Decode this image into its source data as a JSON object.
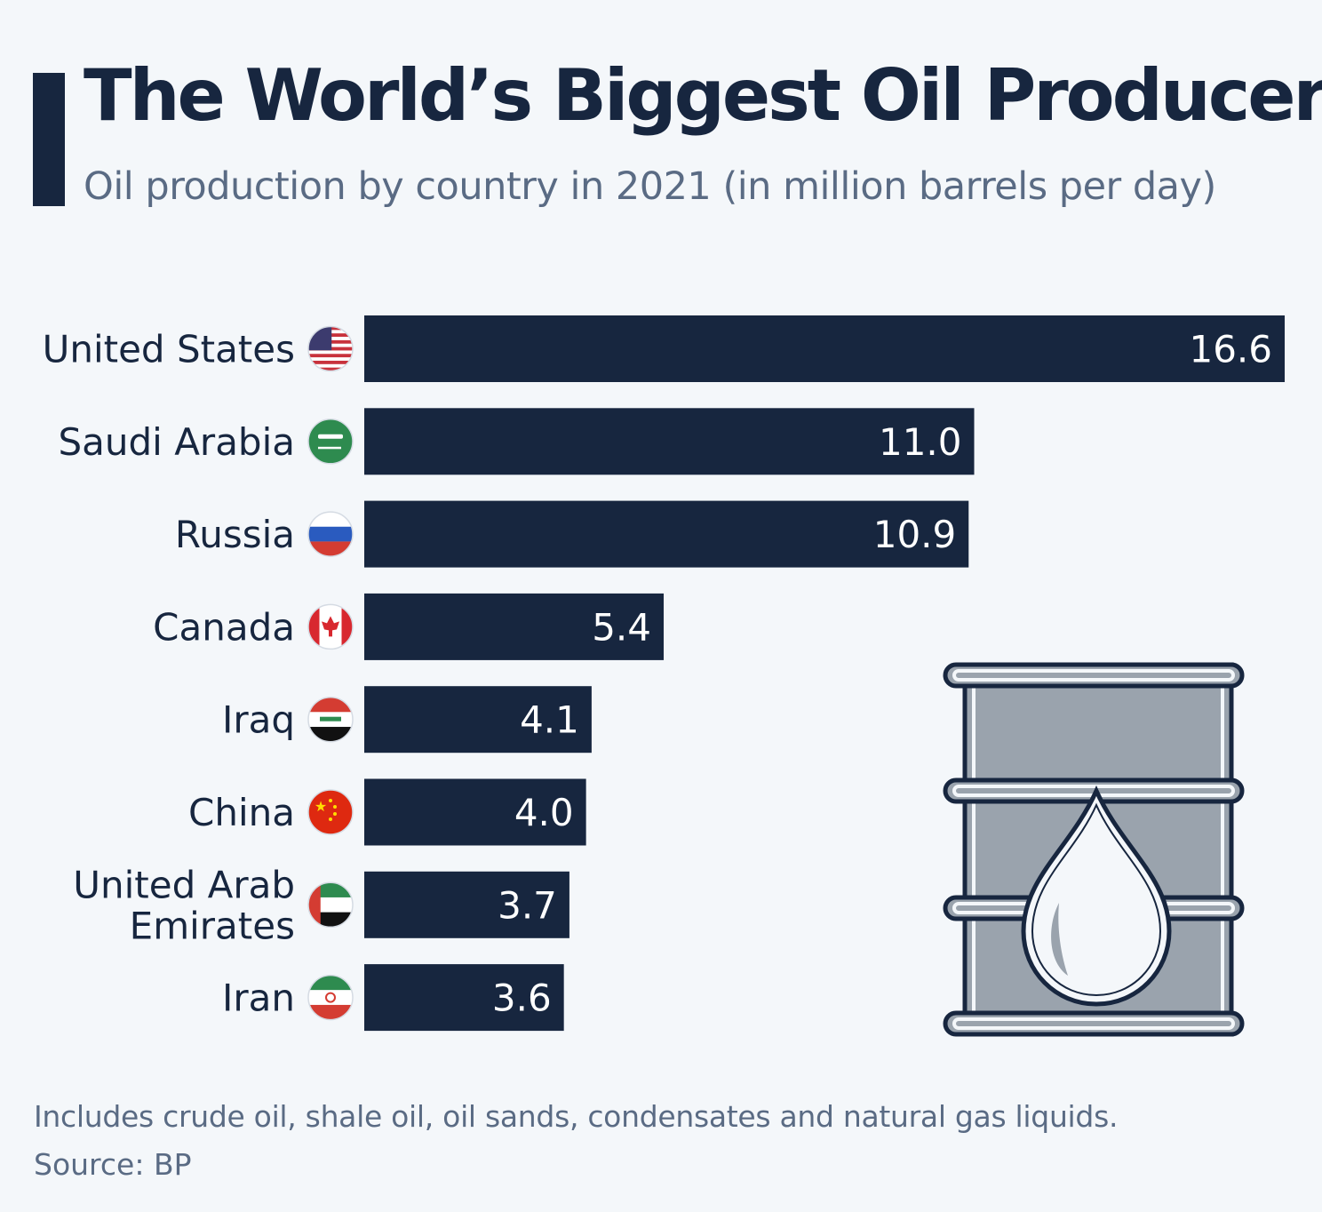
{
  "title": "The World’s Biggest Oil Producers",
  "subtitle": "Oil production by country in 2021 (in million barrels per day)",
  "footnote": "Includes crude oil, shale oil, oil sands, condensates and natural gas liquids.",
  "source": "Source: BP",
  "colors": {
    "bar": "#17263f",
    "text": "#17263f",
    "muted": "#5a6b84",
    "barrel": "#9aa3ad",
    "background": "#f4f7fa"
  },
  "chart_data": {
    "type": "bar",
    "orientation": "horizontal",
    "categories": [
      "United States",
      "Saudi Arabia",
      "Russia",
      "Canada",
      "Iraq",
      "China",
      "United Arab Emirates",
      "Iran"
    ],
    "category_lines": [
      [
        "United States"
      ],
      [
        "Saudi Arabia"
      ],
      [
        "Russia"
      ],
      [
        "Canada"
      ],
      [
        "Iraq"
      ],
      [
        "China"
      ],
      [
        "United Arab",
        "Emirates"
      ],
      [
        "Iran"
      ]
    ],
    "values": [
      16.6,
      11.0,
      10.9,
      5.4,
      4.1,
      4.0,
      3.7,
      3.6
    ],
    "value_labels": [
      "16.6",
      "11.0",
      "10.9",
      "5.4",
      "4.1",
      "4.0",
      "3.7",
      "3.6"
    ],
    "flags": [
      "us-flag-icon",
      "saudi-arabia-flag-icon",
      "russia-flag-icon",
      "canada-flag-icon",
      "iraq-flag-icon",
      "china-flag-icon",
      "uae-flag-icon",
      "iran-flag-icon"
    ],
    "title": "The World’s Biggest Oil Producers",
    "subtitle": "Oil production by country in 2021 (in million barrels per day)",
    "xlabel": "",
    "ylabel": "",
    "xlim": [
      0,
      16.6
    ],
    "grid": false,
    "legend": false
  },
  "decoration": {
    "icon": "oil-barrel-icon"
  }
}
